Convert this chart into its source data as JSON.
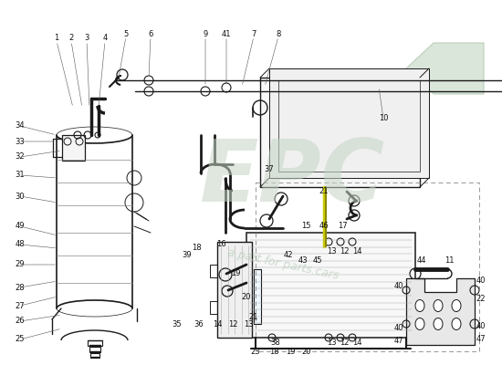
{
  "background_color": "#ffffff",
  "line_color": "#1a1a1a",
  "label_color": "#111111",
  "label_fontsize": 6.0,
  "watermark_epc_color": "#c5d5c5",
  "watermark_text_color": "#b0c8b0",
  "arrow_fill": "#d0e0d0",
  "arrow_edge": "#b0c8b0",
  "dashed_box_color": "#888888",
  "yellow_bar_color": "#e8e840"
}
